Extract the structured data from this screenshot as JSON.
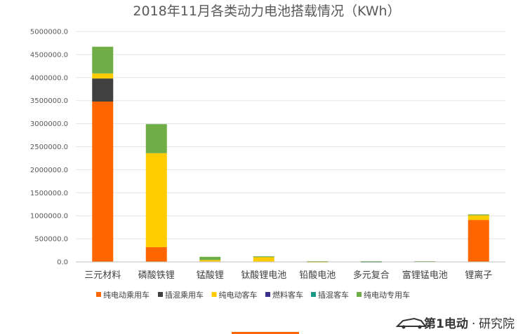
{
  "chart_data": {
    "type": "stacked-bar",
    "title": "2018年11月各类动力电池搭载情况（KWh）",
    "categories": [
      "三元材料",
      "磷酸铁锂",
      "锰酸锂",
      "钛酸锂电池",
      "铅酸电池",
      "多元复合",
      "富锂锰电池",
      "锂离子"
    ],
    "ylim": [
      0,
      5000000
    ],
    "yticks": [
      0,
      500000,
      1000000,
      1500000,
      2000000,
      2500000,
      3000000,
      3500000,
      4000000,
      4500000,
      5000000
    ],
    "ytick_labels": [
      "0.0",
      "500000.0",
      "1000000.0",
      "1500000.0",
      "2000000.0",
      "2500000.0",
      "3000000.0",
      "3500000.0",
      "4000000.0",
      "4500000.0",
      "5000000.0"
    ],
    "series": [
      {
        "name": "纯电动乘用车",
        "color": "#ff6600",
        "values": [
          3480000,
          320000,
          10000,
          0,
          0,
          0,
          0,
          910000
        ]
      },
      {
        "name": "插混乘用车",
        "color": "#404040",
        "values": [
          500000,
          0,
          0,
          0,
          0,
          0,
          0,
          0
        ]
      },
      {
        "name": "纯电动客车",
        "color": "#ffcc00",
        "values": [
          110000,
          2040000,
          30000,
          110000,
          5000,
          0,
          0,
          100000
        ]
      },
      {
        "name": "燃料客车",
        "color": "#3a2f8f",
        "values": [
          0,
          0,
          0,
          0,
          0,
          0,
          0,
          0
        ]
      },
      {
        "name": "插混客车",
        "color": "#1a9a87",
        "values": [
          0,
          0,
          0,
          0,
          0,
          5000,
          0,
          0
        ]
      },
      {
        "name": "纯电动专用车",
        "color": "#70ad47",
        "values": [
          580000,
          630000,
          70000,
          10000,
          10000,
          10000,
          15000,
          20000
        ]
      }
    ]
  },
  "watermark": {
    "brand": "第1电动",
    "separator": "·",
    "suffix": "研究院"
  }
}
